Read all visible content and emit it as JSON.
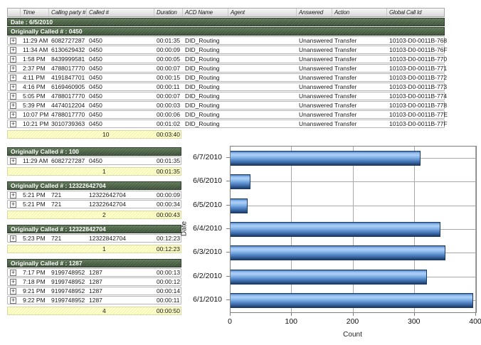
{
  "table": {
    "expand_icon": "+",
    "columns": [
      "",
      "Time",
      "Calling party #",
      "Called #",
      "Duration",
      "ACD Name",
      "Agent",
      "Answered",
      "Action",
      "Global Call Id"
    ],
    "date_header": "Date : 6/5/2010",
    "main_group": {
      "header": "Originally Called # : 0450",
      "rows": [
        {
          "time": "11:29 AM",
          "calling_party": "6082727287",
          "called": "0450",
          "duration": "00:01:35",
          "acd_name": "DID_Routing",
          "agent": "",
          "answered": "Unanswered",
          "action": "Transfer",
          "global_call_id": "10103-D0-0011B-768"
        },
        {
          "time": "11:34 AM",
          "calling_party": "6130629432",
          "called": "0450",
          "duration": "00:00:09",
          "acd_name": "DID_Routing",
          "agent": "",
          "answered": "Unanswered",
          "action": "Transfer",
          "global_call_id": "10103-D0-0011B-76F"
        },
        {
          "time": "1:58 PM",
          "calling_party": "8439999581",
          "called": "0450",
          "duration": "00:00:05",
          "acd_name": "DID_Routing",
          "agent": "",
          "answered": "Unanswered",
          "action": "Transfer",
          "global_call_id": "10103-D0-0011B-770"
        },
        {
          "time": "2:37 PM",
          "calling_party": "4788017770",
          "called": "0450",
          "duration": "00:00:07",
          "acd_name": "DID_Routing",
          "agent": "",
          "answered": "Unanswered",
          "action": "Transfer",
          "global_call_id": "10103-D0-0011B-771"
        },
        {
          "time": "4:11 PM",
          "calling_party": "4191847701",
          "called": "0450",
          "duration": "00:00:15",
          "acd_name": "DID_Routing",
          "agent": "",
          "answered": "Unanswered",
          "action": "Transfer",
          "global_call_id": "10103-D0-0011B-772"
        },
        {
          "time": "4:16 PM",
          "calling_party": "6169460905",
          "called": "0450",
          "duration": "00:00:11",
          "acd_name": "DID_Routing",
          "agent": "",
          "answered": "Unanswered",
          "action": "Transfer",
          "global_call_id": "10103-D0-0011B-773"
        },
        {
          "time": "5:05 PM",
          "calling_party": "4788017770",
          "called": "0450",
          "duration": "00:00:07",
          "acd_name": "DID_Routing",
          "agent": "",
          "answered": "Unanswered",
          "action": "Transfer",
          "global_call_id": "10103-D0-0011B-774"
        },
        {
          "time": "5:39 PM",
          "calling_party": "4474012204",
          "called": "0450",
          "duration": "00:00:03",
          "acd_name": "DID_Routing",
          "agent": "",
          "answered": "Unanswered",
          "action": "Transfer",
          "global_call_id": "10103-D0-0011B-778"
        },
        {
          "time": "10:07 PM",
          "calling_party": "4788017770",
          "called": "0450",
          "duration": "00:00:06",
          "acd_name": "DID_Routing",
          "agent": "",
          "answered": "Unanswered",
          "action": "Transfer",
          "global_call_id": "10103-D0-0011B-77E"
        },
        {
          "time": "10:21 PM",
          "calling_party": "3010739363",
          "called": "0450",
          "duration": "00:01:02",
          "acd_name": "DID_Routing",
          "agent": "",
          "answered": "Unanswered",
          "action": "Transfer",
          "global_call_id": "10103-D0-0011B-77F"
        }
      ],
      "summary": {
        "count": "10",
        "total_duration": "00:03:40"
      }
    },
    "groups": [
      {
        "header": "Originally Called # : 100",
        "rows": [
          {
            "time": "11:29 AM",
            "calling_party": "6082727287",
            "called": "0450",
            "duration": "00:01:35"
          }
        ],
        "summary": {
          "count": "1",
          "total_duration": "00:01:35"
        }
      },
      {
        "header": "Originally Called # : 12322642704",
        "rows": [
          {
            "time": "5:21 PM",
            "calling_party": "721",
            "called": "12322642704",
            "duration": "00:00:09"
          },
          {
            "time": "5:21 PM",
            "calling_party": "721",
            "called": "12322642704",
            "duration": "00:00:34"
          }
        ],
        "summary": {
          "count": "2",
          "total_duration": "00:00:43"
        }
      },
      {
        "header": "Originally Called # : 12322842704",
        "rows": [
          {
            "time": "5:23 PM",
            "calling_party": "721",
            "called": "12322842704",
            "duration": "00:12:23"
          }
        ],
        "summary": {
          "count": "1",
          "total_duration": "00:12:23"
        }
      },
      {
        "header": "Originally Called # : 1287",
        "rows": [
          {
            "time": "7:17 PM",
            "calling_party": "9199748952",
            "called": "1287",
            "duration": "00:00:13"
          },
          {
            "time": "7:18 PM",
            "calling_party": "9199748952",
            "called": "1287",
            "duration": "00:00:12"
          },
          {
            "time": "9:21 PM",
            "calling_party": "9199748952",
            "called": "1287",
            "duration": "00:00:14"
          },
          {
            "time": "9:22 PM",
            "calling_party": "9199748952",
            "called": "1287",
            "duration": "00:00:11"
          }
        ],
        "summary": {
          "count": "4",
          "total_duration": "00:00:50"
        }
      }
    ]
  },
  "chart_data": {
    "type": "bar",
    "orientation": "horizontal",
    "title": "",
    "categories": [
      "6/7/2010",
      "6/6/2010",
      "6/5/2010",
      "6/4/2010",
      "6/3/2010",
      "6/2/2010",
      "6/1/2010"
    ],
    "values": [
      310,
      33,
      28,
      342,
      350,
      320,
      395
    ],
    "xlabel": "Count",
    "ylabel": "Date",
    "xlim": [
      0,
      400
    ],
    "xticks": [
      0,
      100,
      200,
      300,
      400
    ],
    "grid": true,
    "legend": "none",
    "bar_color_top": "#aacdf5",
    "bar_color_bottom": "#1c3a63",
    "group_header_color": "#4a6144",
    "summary_color": "#ffffca"
  }
}
